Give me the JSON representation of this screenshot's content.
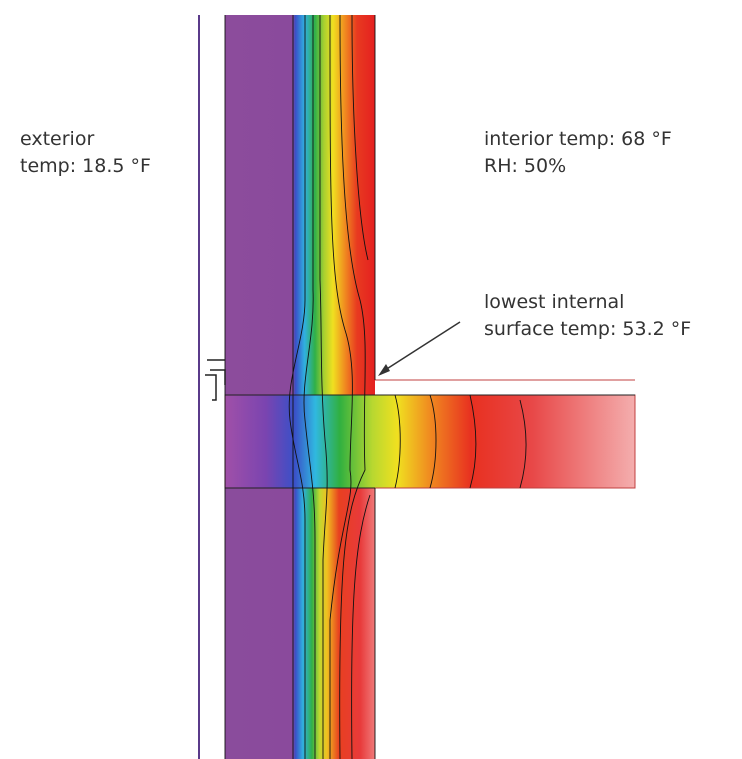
{
  "annotations": [
    {
      "lines": [
        "exterior",
        "temp: 18.5 °F"
      ]
    },
    {
      "lines": [
        "interior temp: 68 °F",
        "RH: 50%"
      ]
    },
    {
      "lines": [
        "lowest internal",
        "surface temp: 53.2 °F"
      ]
    }
  ]
}
